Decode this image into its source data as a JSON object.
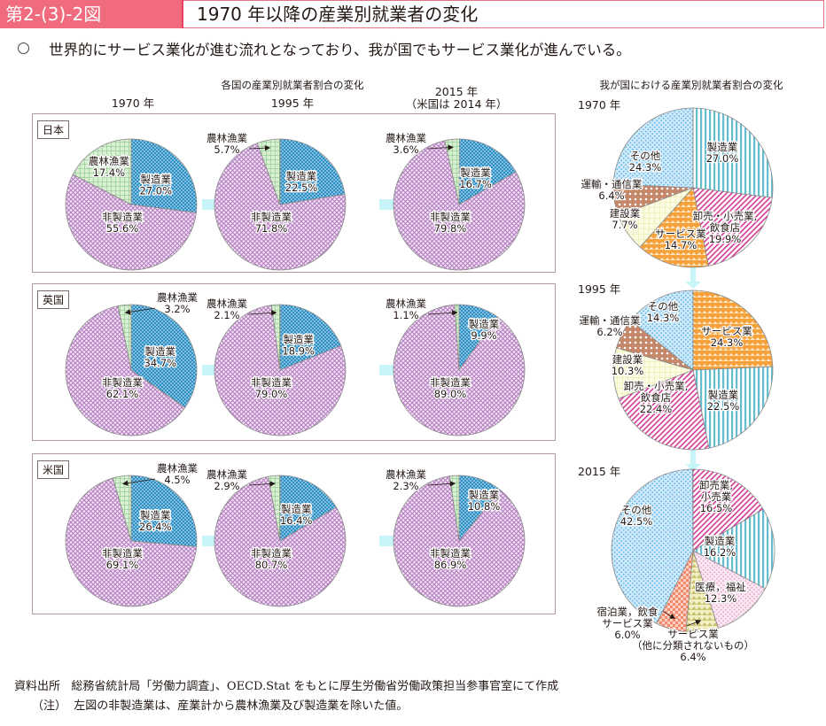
{
  "header": {
    "figure_number": "第2-(3)-2図",
    "title": "1970 年以降の産業別就業者の変化"
  },
  "lead": "世界的にサービス業化が進む流れとなっており、我が国でもサービス業化が進んでいる。",
  "left_section": {
    "title": "各国の産業別就業者割合の変化",
    "year_headers": [
      "1970 年",
      "1995 年",
      "2015 年",
      "（米国は 2014 年）"
    ]
  },
  "right_section": {
    "title": "我が国における産業別就業者割合の変化",
    "year_labels": [
      "1970 年",
      "1995 年",
      "2015 年"
    ]
  },
  "colors": {
    "header_accent": "#ef6b7d",
    "arrow": "#c8f5f8",
    "agri": "#b5ddb0",
    "manuf": "#2f97c9",
    "nonmanuf": "#c79ad0"
  },
  "chart_data": [
    {
      "type": "pie",
      "panel": "countries",
      "country": "日本",
      "year": "1970 年",
      "slices": [
        {
          "label": "製造業",
          "value": 27.0
        },
        {
          "label": "非製造業",
          "value": 55.6
        },
        {
          "label": "農林漁業",
          "value": 17.4
        }
      ]
    },
    {
      "type": "pie",
      "panel": "countries",
      "country": "日本",
      "year": "1995 年",
      "slices": [
        {
          "label": "製造業",
          "value": 22.5
        },
        {
          "label": "非製造業",
          "value": 71.8
        },
        {
          "label": "農林漁業",
          "value": 5.7
        }
      ]
    },
    {
      "type": "pie",
      "panel": "countries",
      "country": "日本",
      "year": "2015 年",
      "slices": [
        {
          "label": "製造業",
          "value": 16.7
        },
        {
          "label": "非製造業",
          "value": 79.8
        },
        {
          "label": "農林漁業",
          "value": 3.6
        }
      ]
    },
    {
      "type": "pie",
      "panel": "countries",
      "country": "英国",
      "year": "1970 年",
      "slices": [
        {
          "label": "製造業",
          "value": 34.7
        },
        {
          "label": "非製造業",
          "value": 62.1
        },
        {
          "label": "農林漁業",
          "value": 3.2
        }
      ]
    },
    {
      "type": "pie",
      "panel": "countries",
      "country": "英国",
      "year": "1995 年",
      "slices": [
        {
          "label": "製造業",
          "value": 18.9
        },
        {
          "label": "非製造業",
          "value": 79.0
        },
        {
          "label": "農林漁業",
          "value": 2.1
        }
      ]
    },
    {
      "type": "pie",
      "panel": "countries",
      "country": "英国",
      "year": "2015 年",
      "slices": [
        {
          "label": "製造業",
          "value": 9.9
        },
        {
          "label": "非製造業",
          "value": 89.0
        },
        {
          "label": "農林漁業",
          "value": 1.1
        }
      ]
    },
    {
      "type": "pie",
      "panel": "countries",
      "country": "米国",
      "year": "1970 年",
      "slices": [
        {
          "label": "製造業",
          "value": 26.4
        },
        {
          "label": "非製造業",
          "value": 69.1
        },
        {
          "label": "農林漁業",
          "value": 4.5
        }
      ]
    },
    {
      "type": "pie",
      "panel": "countries",
      "country": "米国",
      "year": "1995 年",
      "slices": [
        {
          "label": "製造業",
          "value": 16.4
        },
        {
          "label": "非製造業",
          "value": 80.7
        },
        {
          "label": "農林漁業",
          "value": 2.9
        }
      ]
    },
    {
      "type": "pie",
      "panel": "countries",
      "country": "米国",
      "year": "2014 年",
      "slices": [
        {
          "label": "製造業",
          "value": 10.8
        },
        {
          "label": "非製造業",
          "value": 86.9
        },
        {
          "label": "農林漁業",
          "value": 2.3
        }
      ]
    },
    {
      "type": "pie",
      "panel": "japan",
      "year": "1970 年",
      "slices": [
        {
          "label": "製造業",
          "value": 27.0,
          "pattern": "vstripe"
        },
        {
          "label": "卸売・小売業,\n飲食店",
          "value": 19.9,
          "pattern": "diag"
        },
        {
          "label": "サービス業",
          "value": 14.7,
          "pattern": "orange"
        },
        {
          "label": "建設業",
          "value": 7.7,
          "pattern": "yellow"
        },
        {
          "label": "運輸・通信業",
          "value": 6.4,
          "pattern": "brown"
        },
        {
          "label": "その他",
          "value": 24.3,
          "pattern": "dots"
        }
      ]
    },
    {
      "type": "pie",
      "panel": "japan",
      "year": "1995 年",
      "slices": [
        {
          "label": "サービス業",
          "value": 24.3,
          "pattern": "orange"
        },
        {
          "label": "製造業",
          "value": 22.5,
          "pattern": "vstripe"
        },
        {
          "label": "卸売・小売業,\n飲食店",
          "value": 22.4,
          "pattern": "diag"
        },
        {
          "label": "建設業",
          "value": 10.3,
          "pattern": "yellow"
        },
        {
          "label": "運輸・通信業",
          "value": 6.2,
          "pattern": "brown"
        },
        {
          "label": "その他",
          "value": 14.3,
          "pattern": "dots"
        }
      ]
    },
    {
      "type": "pie",
      "panel": "japan",
      "year": "2015 年",
      "slices": [
        {
          "label": "卸売業,\n小売業",
          "value": 16.5,
          "pattern": "diag"
        },
        {
          "label": "製造業",
          "value": 16.2,
          "pattern": "vstripe"
        },
        {
          "label": "医療，福祉",
          "value": 12.3,
          "pattern": "pinkdots"
        },
        {
          "label": "サービス業\n（他に分類されないもの）",
          "value": 6.4,
          "pattern": "olive"
        },
        {
          "label": "宿泊業，飲食\nサービス業",
          "value": 6.0,
          "pattern": "salmon"
        },
        {
          "label": "その他",
          "value": 42.5,
          "pattern": "dots"
        }
      ]
    }
  ],
  "footer": {
    "source_label": "資料出所",
    "source_text": "総務省統計局「労働力調査」、OECD.Stat をもとに厚生労働省労働政策担当参事官室にて作成",
    "note_label": "（注）",
    "note_text": "左図の非製造業は、産業計から農林漁業及び製造業を除いた値。"
  }
}
